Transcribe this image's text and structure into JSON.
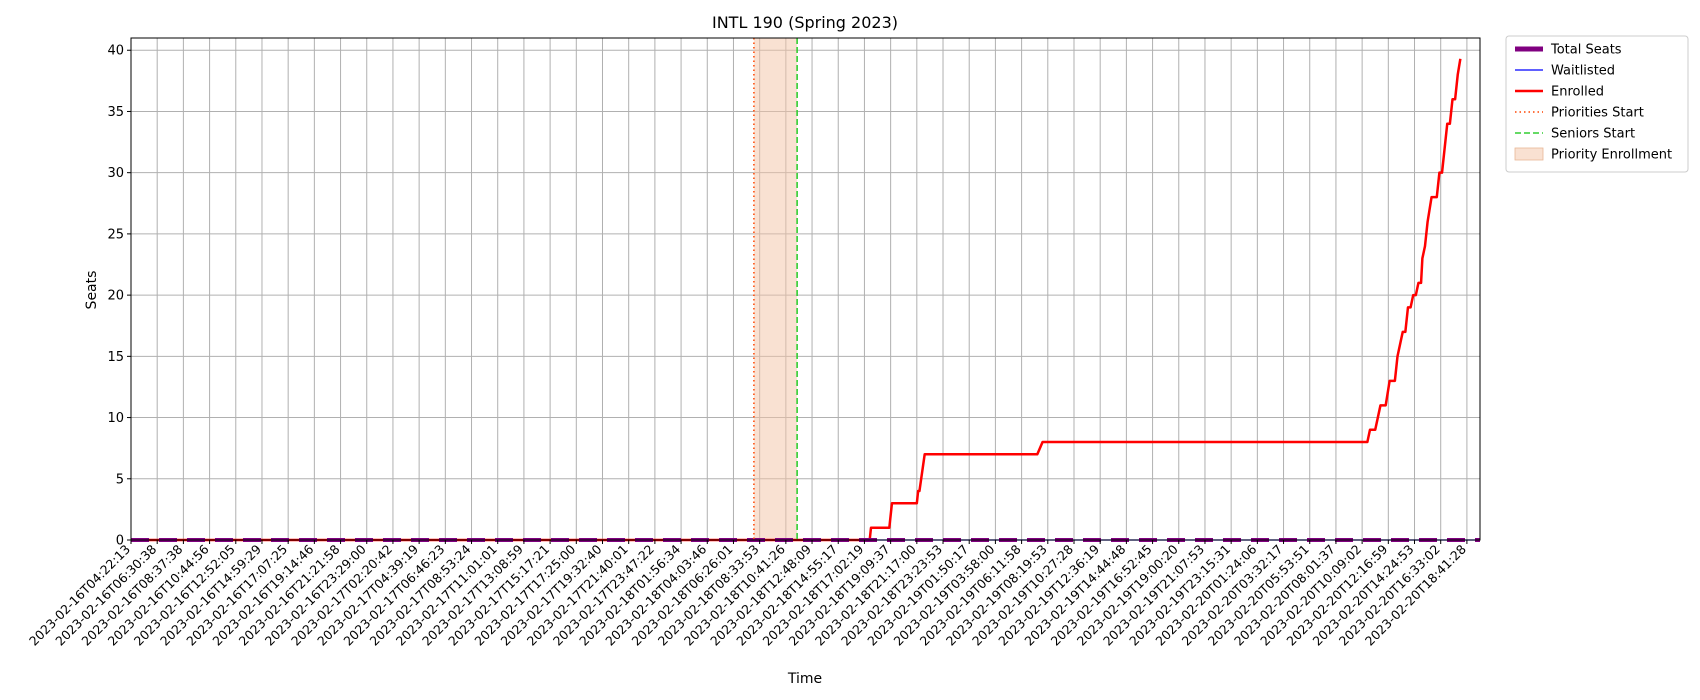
{
  "chart_data": {
    "type": "line",
    "title": "INTL 190 (Spring 2023)",
    "xlabel": "Time",
    "ylabel": "Seats",
    "ylim": [
      0,
      41
    ],
    "yticks": [
      0,
      5,
      10,
      15,
      20,
      25,
      30,
      35,
      40
    ],
    "grid": true,
    "legend_position": "outside-top-right",
    "x_tick_labels": [
      "2023-02-16T04:22:13",
      "2023-02-16T06:30:38",
      "2023-02-16T08:37:38",
      "2023-02-16T10:44:56",
      "2023-02-16T12:52:05",
      "2023-02-16T14:59:29",
      "2023-02-16T17:07:25",
      "2023-02-16T19:14:46",
      "2023-02-16T21:21:58",
      "2023-02-16T23:29:00",
      "2023-02-17T02:20:42",
      "2023-02-17T04:39:19",
      "2023-02-17T06:46:23",
      "2023-02-17T08:53:24",
      "2023-02-17T11:01:01",
      "2023-02-17T13:08:59",
      "2023-02-17T15:17:21",
      "2023-02-17T17:25:00",
      "2023-02-17T19:32:40",
      "2023-02-17T21:40:01",
      "2023-02-17T23:47:22",
      "2023-02-18T01:56:34",
      "2023-02-18T04:03:46",
      "2023-02-18T06:26:01",
      "2023-02-18T08:33:53",
      "2023-02-18T10:41:26",
      "2023-02-18T12:48:09",
      "2023-02-18T14:55:17",
      "2023-02-18T17:02:19",
      "2023-02-18T19:09:37",
      "2023-02-18T21:17:00",
      "2023-02-18T23:23:53",
      "2023-02-19T01:50:17",
      "2023-02-19T03:58:00",
      "2023-02-19T06:11:58",
      "2023-02-19T08:19:53",
      "2023-02-19T10:27:28",
      "2023-02-19T12:36:19",
      "2023-02-19T14:44:48",
      "2023-02-19T16:52:45",
      "2023-02-19T19:00:20",
      "2023-02-19T21:07:53",
      "2023-02-19T23:15:31",
      "2023-02-20T01:24:06",
      "2023-02-20T03:32:17",
      "2023-02-20T05:53:51",
      "2023-02-20T08:01:37",
      "2023-02-20T10:09:02",
      "2023-02-20T12:16:59",
      "2023-02-20T14:24:53",
      "2023-02-20T16:33:02",
      "2023-02-20T18:41:28"
    ],
    "x_end": 51.5,
    "series": [
      {
        "name": "Total Seats",
        "color": "#800080",
        "style": "dashed-thick",
        "points": [
          [
            0,
            0
          ],
          [
            51.5,
            0
          ]
        ]
      },
      {
        "name": "Waitlisted",
        "color": "#0000ff",
        "style": "solid-thin",
        "points": [
          [
            0,
            0
          ],
          [
            51.5,
            0
          ]
        ]
      },
      {
        "name": "Enrolled",
        "color": "#ff0000",
        "style": "solid-thick",
        "points": [
          [
            0,
            0
          ],
          [
            24.9,
            0
          ],
          [
            25.6,
            0
          ],
          [
            25.7,
            0
          ],
          [
            26.7,
            0
          ],
          [
            26.8,
            0
          ],
          [
            27.7,
            0
          ],
          [
            27.8,
            0
          ],
          [
            28.2,
            0
          ],
          [
            28.25,
            1
          ],
          [
            28.95,
            1
          ],
          [
            29.05,
            3
          ],
          [
            30.0,
            3
          ],
          [
            30.05,
            4
          ],
          [
            30.1,
            4
          ],
          [
            30.3,
            7
          ],
          [
            34.6,
            7
          ],
          [
            34.8,
            8
          ],
          [
            47.2,
            8
          ],
          [
            47.3,
            9
          ],
          [
            47.5,
            9
          ],
          [
            47.6,
            10
          ],
          [
            47.7,
            11
          ],
          [
            47.9,
            11
          ],
          [
            48.05,
            13
          ],
          [
            48.25,
            13
          ],
          [
            48.35,
            15
          ],
          [
            48.45,
            16
          ],
          [
            48.55,
            17
          ],
          [
            48.65,
            17
          ],
          [
            48.75,
            19
          ],
          [
            48.85,
            19
          ],
          [
            48.95,
            20
          ],
          [
            49.05,
            20
          ],
          [
            49.15,
            21
          ],
          [
            49.25,
            21
          ],
          [
            49.3,
            23
          ],
          [
            49.4,
            24
          ],
          [
            49.5,
            26
          ],
          [
            49.65,
            28
          ],
          [
            49.85,
            28
          ],
          [
            49.95,
            30
          ],
          [
            50.05,
            30
          ],
          [
            50.15,
            32
          ],
          [
            50.25,
            34
          ],
          [
            50.35,
            34
          ],
          [
            50.45,
            36
          ],
          [
            50.55,
            36
          ],
          [
            50.65,
            38
          ],
          [
            50.75,
            39.3
          ]
        ]
      }
    ],
    "markers": [
      {
        "name": "Priorities Start",
        "x": 23.78,
        "color": "#ff4500",
        "style": "dotted"
      },
      {
        "name": "Seniors Start",
        "x": 25.43,
        "color": "#32cd32",
        "style": "dashed"
      }
    ],
    "spans": [
      {
        "name": "Priority Enrollment",
        "x0": 23.78,
        "x1": 25.43,
        "color": "#f4c3a6",
        "opacity": 0.5
      }
    ],
    "legend": [
      {
        "label": "Total Seats",
        "color": "#800080",
        "style": "dashed-thick"
      },
      {
        "label": "Waitlisted",
        "color": "#0000ff",
        "style": "solid-thin"
      },
      {
        "label": "Enrolled",
        "color": "#ff0000",
        "style": "solid-thick"
      },
      {
        "label": "Priorities Start",
        "color": "#ff4500",
        "style": "dotted"
      },
      {
        "label": "Seniors Start",
        "color": "#32cd32",
        "style": "dashed"
      },
      {
        "label": "Priority Enrollment",
        "color": "#f4c3a6",
        "style": "patch"
      }
    ]
  }
}
